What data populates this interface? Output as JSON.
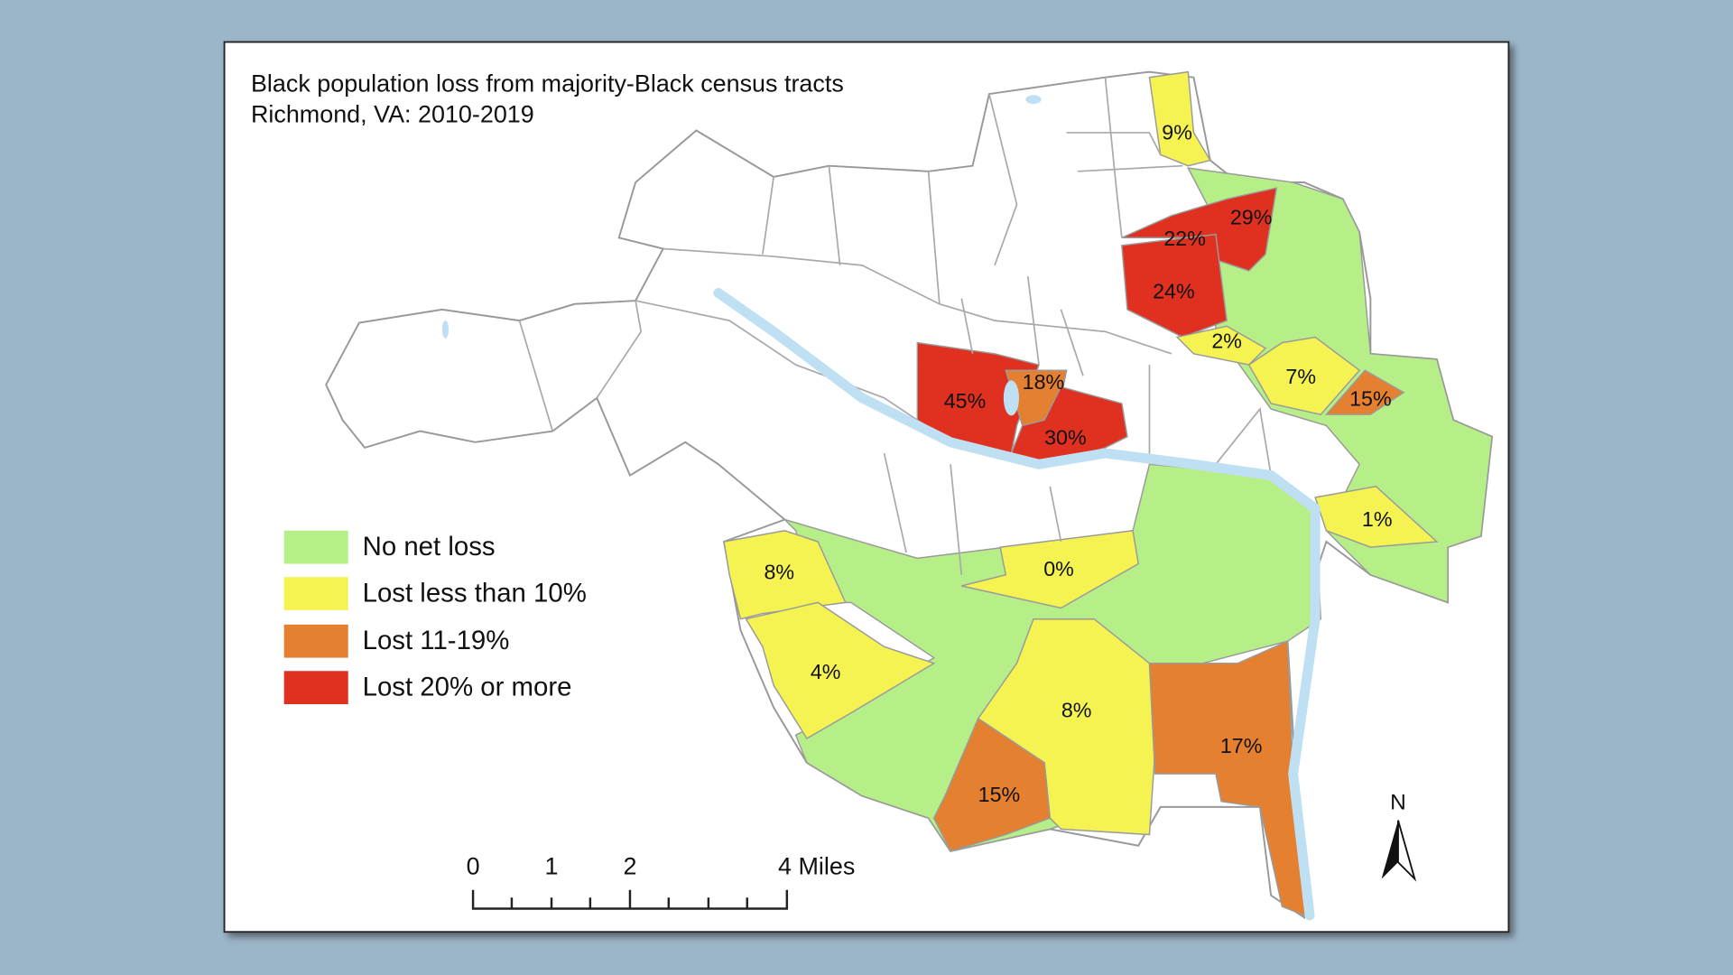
{
  "title": [
    "Black population loss from majority-Black census tracts",
    "Richmond, VA: 2010-2019"
  ],
  "legend": [
    {
      "label": "No net loss",
      "color": "#b6ee88"
    },
    {
      "label": "Lost less than 10%",
      "color": "#f5f352"
    },
    {
      "label": "Lost 11-19%",
      "color": "#e4802f"
    },
    {
      "label": "Lost 20% or more",
      "color": "#df3020"
    }
  ],
  "tract_labels": [
    "9%",
    "29%",
    "22%",
    "24%",
    "2%",
    "7%",
    "15%",
    "45%",
    "18%",
    "30%",
    "1%",
    "8%",
    "0%",
    "4%",
    "8%",
    "17%",
    "15%"
  ],
  "scale_bar": [
    "0",
    "1",
    "2",
    "4 Miles"
  ],
  "north_arrow": "N"
}
